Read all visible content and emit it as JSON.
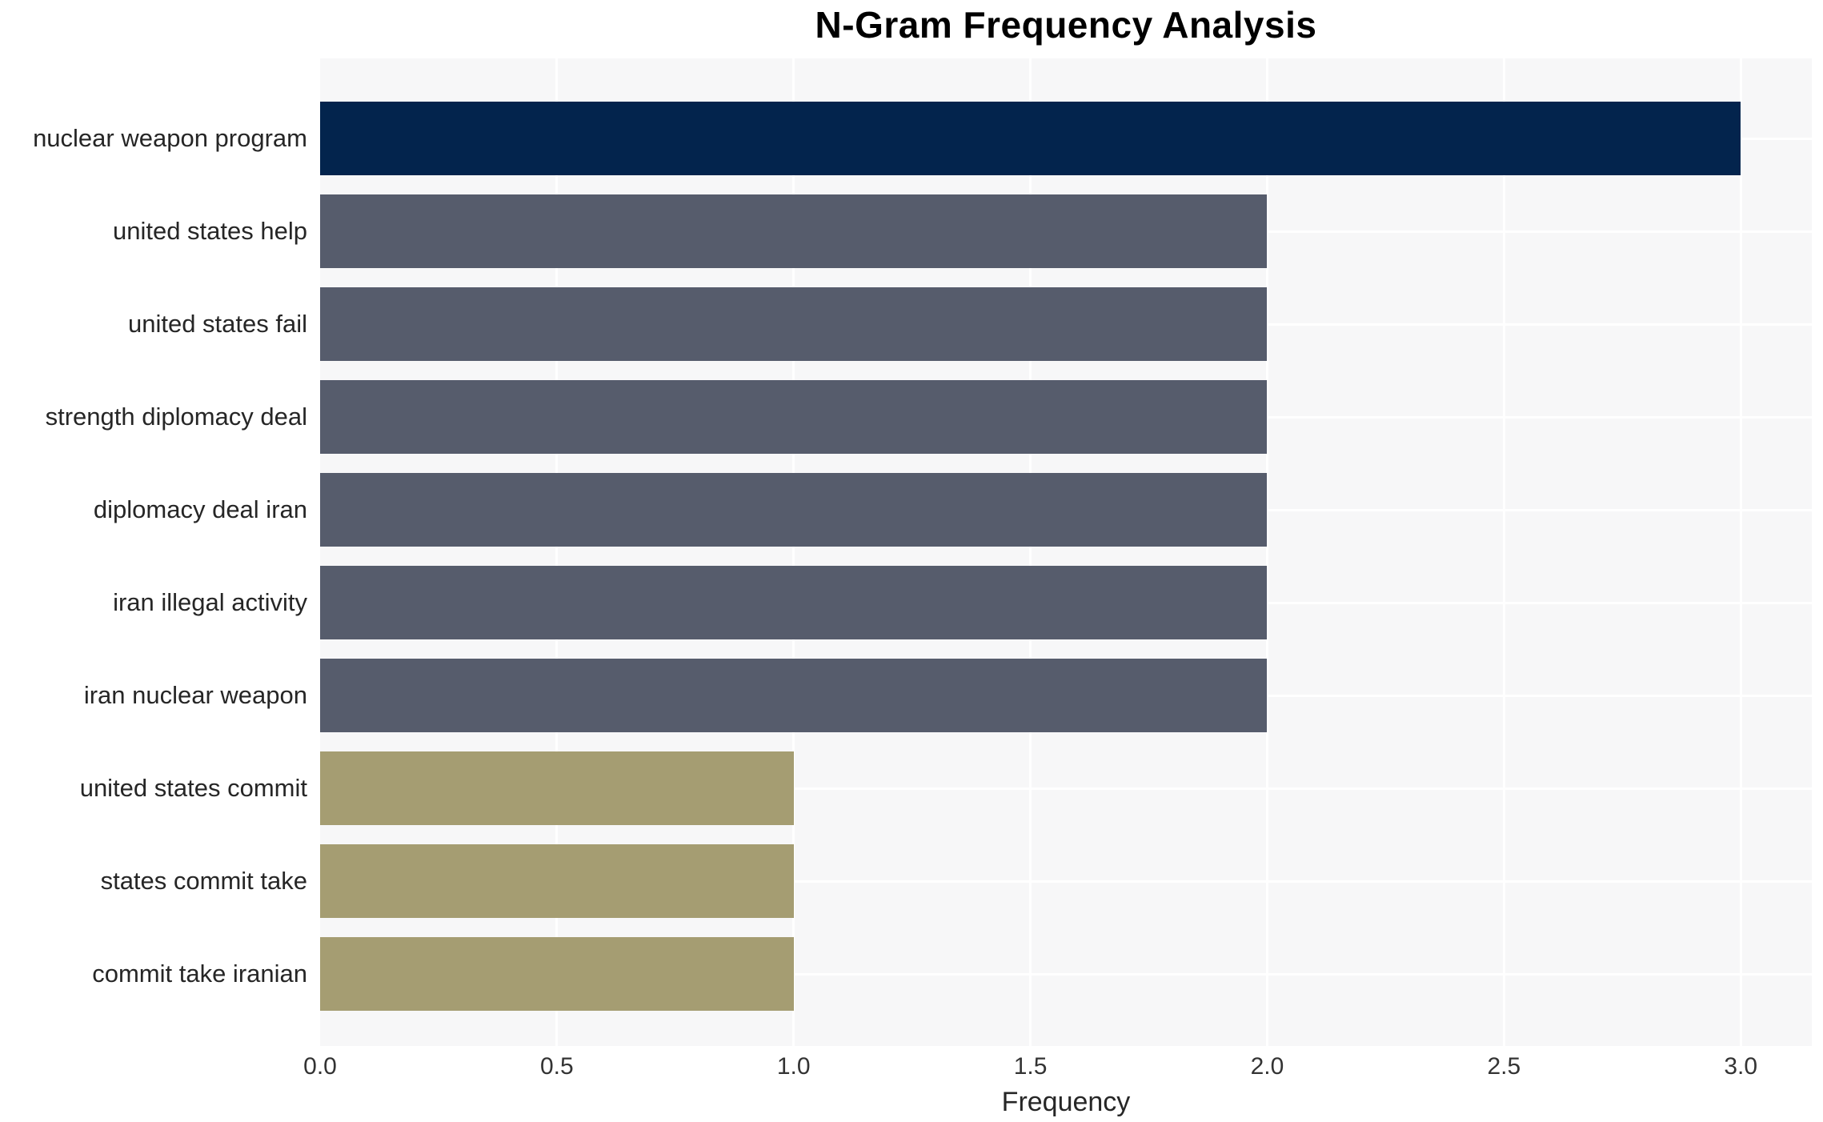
{
  "chart_data": {
    "type": "bar",
    "orientation": "horizontal",
    "title": "N-Gram Frequency Analysis",
    "xlabel": "Frequency",
    "ylabel": "",
    "categories": [
      "nuclear weapon program",
      "united states help",
      "united states fail",
      "strength diplomacy deal",
      "diplomacy deal iran",
      "iran illegal activity",
      "iran nuclear weapon",
      "united states commit",
      "states commit take",
      "commit take iranian"
    ],
    "values": [
      3,
      2,
      2,
      2,
      2,
      2,
      2,
      1,
      1,
      1
    ],
    "bar_colors": [
      "#03244d",
      "#565c6c",
      "#565c6c",
      "#565c6c",
      "#565c6c",
      "#565c6c",
      "#565c6c",
      "#a59d72",
      "#a59d72",
      "#a59d72"
    ],
    "xticks": [
      0.5,
      1.0,
      1.5,
      2.0,
      2.5,
      3.0
    ],
    "xtick_labels": [
      "0.0",
      "0.5",
      "1.0",
      "1.5",
      "2.0",
      "2.5",
      "3.0"
    ],
    "xtick_values": [
      0.0,
      0.5,
      1.0,
      1.5,
      2.0,
      2.5,
      3.0
    ],
    "xlim": [
      0,
      3.15
    ],
    "grid": true,
    "legend": false,
    "plot_background": "#f7f7f8",
    "grid_color": "#ffffff"
  }
}
